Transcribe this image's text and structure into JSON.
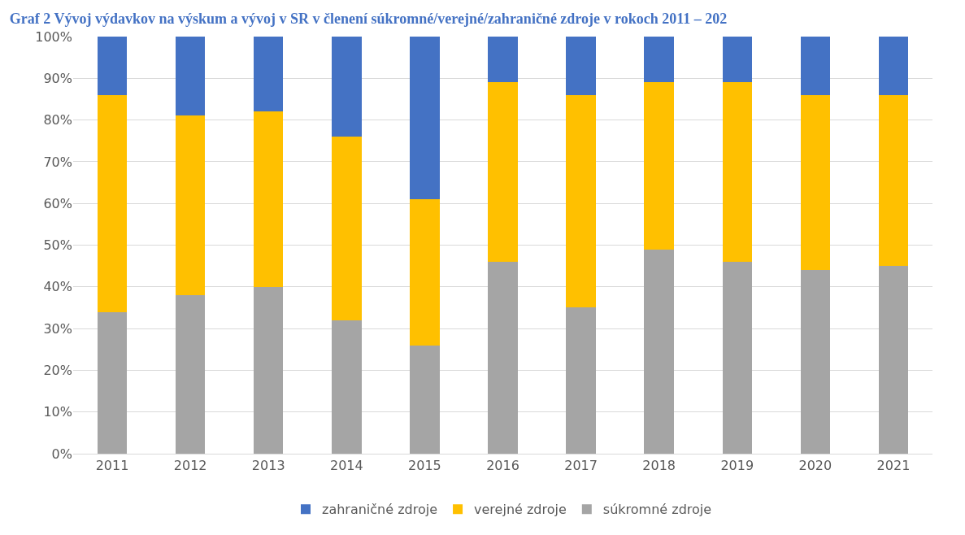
{
  "chart_data": {
    "type": "bar",
    "stacked": true,
    "title": "Graf 2 Vývoj výdavkov na výskum a vývoj v SR v členení súkromné/verejné/zahraničné zdroje v rokoch 2011 – 202",
    "categories": [
      "2011",
      "2012",
      "2013",
      "2014",
      "2015",
      "2016",
      "2017",
      "2018",
      "2019",
      "2020",
      "2021"
    ],
    "series": [
      {
        "name": "súkromné zdroje",
        "color": "#a5a5a5",
        "values": [
          34,
          38,
          40,
          32,
          26,
          46,
          35,
          49,
          46,
          44,
          45
        ]
      },
      {
        "name": "verejné zdroje",
        "color": "#ffc000",
        "values": [
          52,
          43,
          42,
          44,
          35,
          43,
          51,
          40,
          43,
          42,
          41
        ]
      },
      {
        "name": "zahraničné zdroje",
        "color": "#4472c4",
        "values": [
          14,
          19,
          18,
          24,
          39,
          11,
          14,
          11,
          11,
          14,
          14
        ]
      }
    ],
    "ylim": [
      0,
      100
    ],
    "yticks": [
      {
        "value": 0,
        "label": "0%"
      },
      {
        "value": 10,
        "label": "10%"
      },
      {
        "value": 20,
        "label": "20%"
      },
      {
        "value": 30,
        "label": "30%"
      },
      {
        "value": 40,
        "label": "40%"
      },
      {
        "value": 50,
        "label": "50%"
      },
      {
        "value": 60,
        "label": "60%"
      },
      {
        "value": 70,
        "label": "70%"
      },
      {
        "value": 80,
        "label": "80%"
      },
      {
        "value": 90,
        "label": "90%"
      },
      {
        "value": 100,
        "label": "100%"
      }
    ],
    "grid": "y",
    "legend": "bottom"
  }
}
